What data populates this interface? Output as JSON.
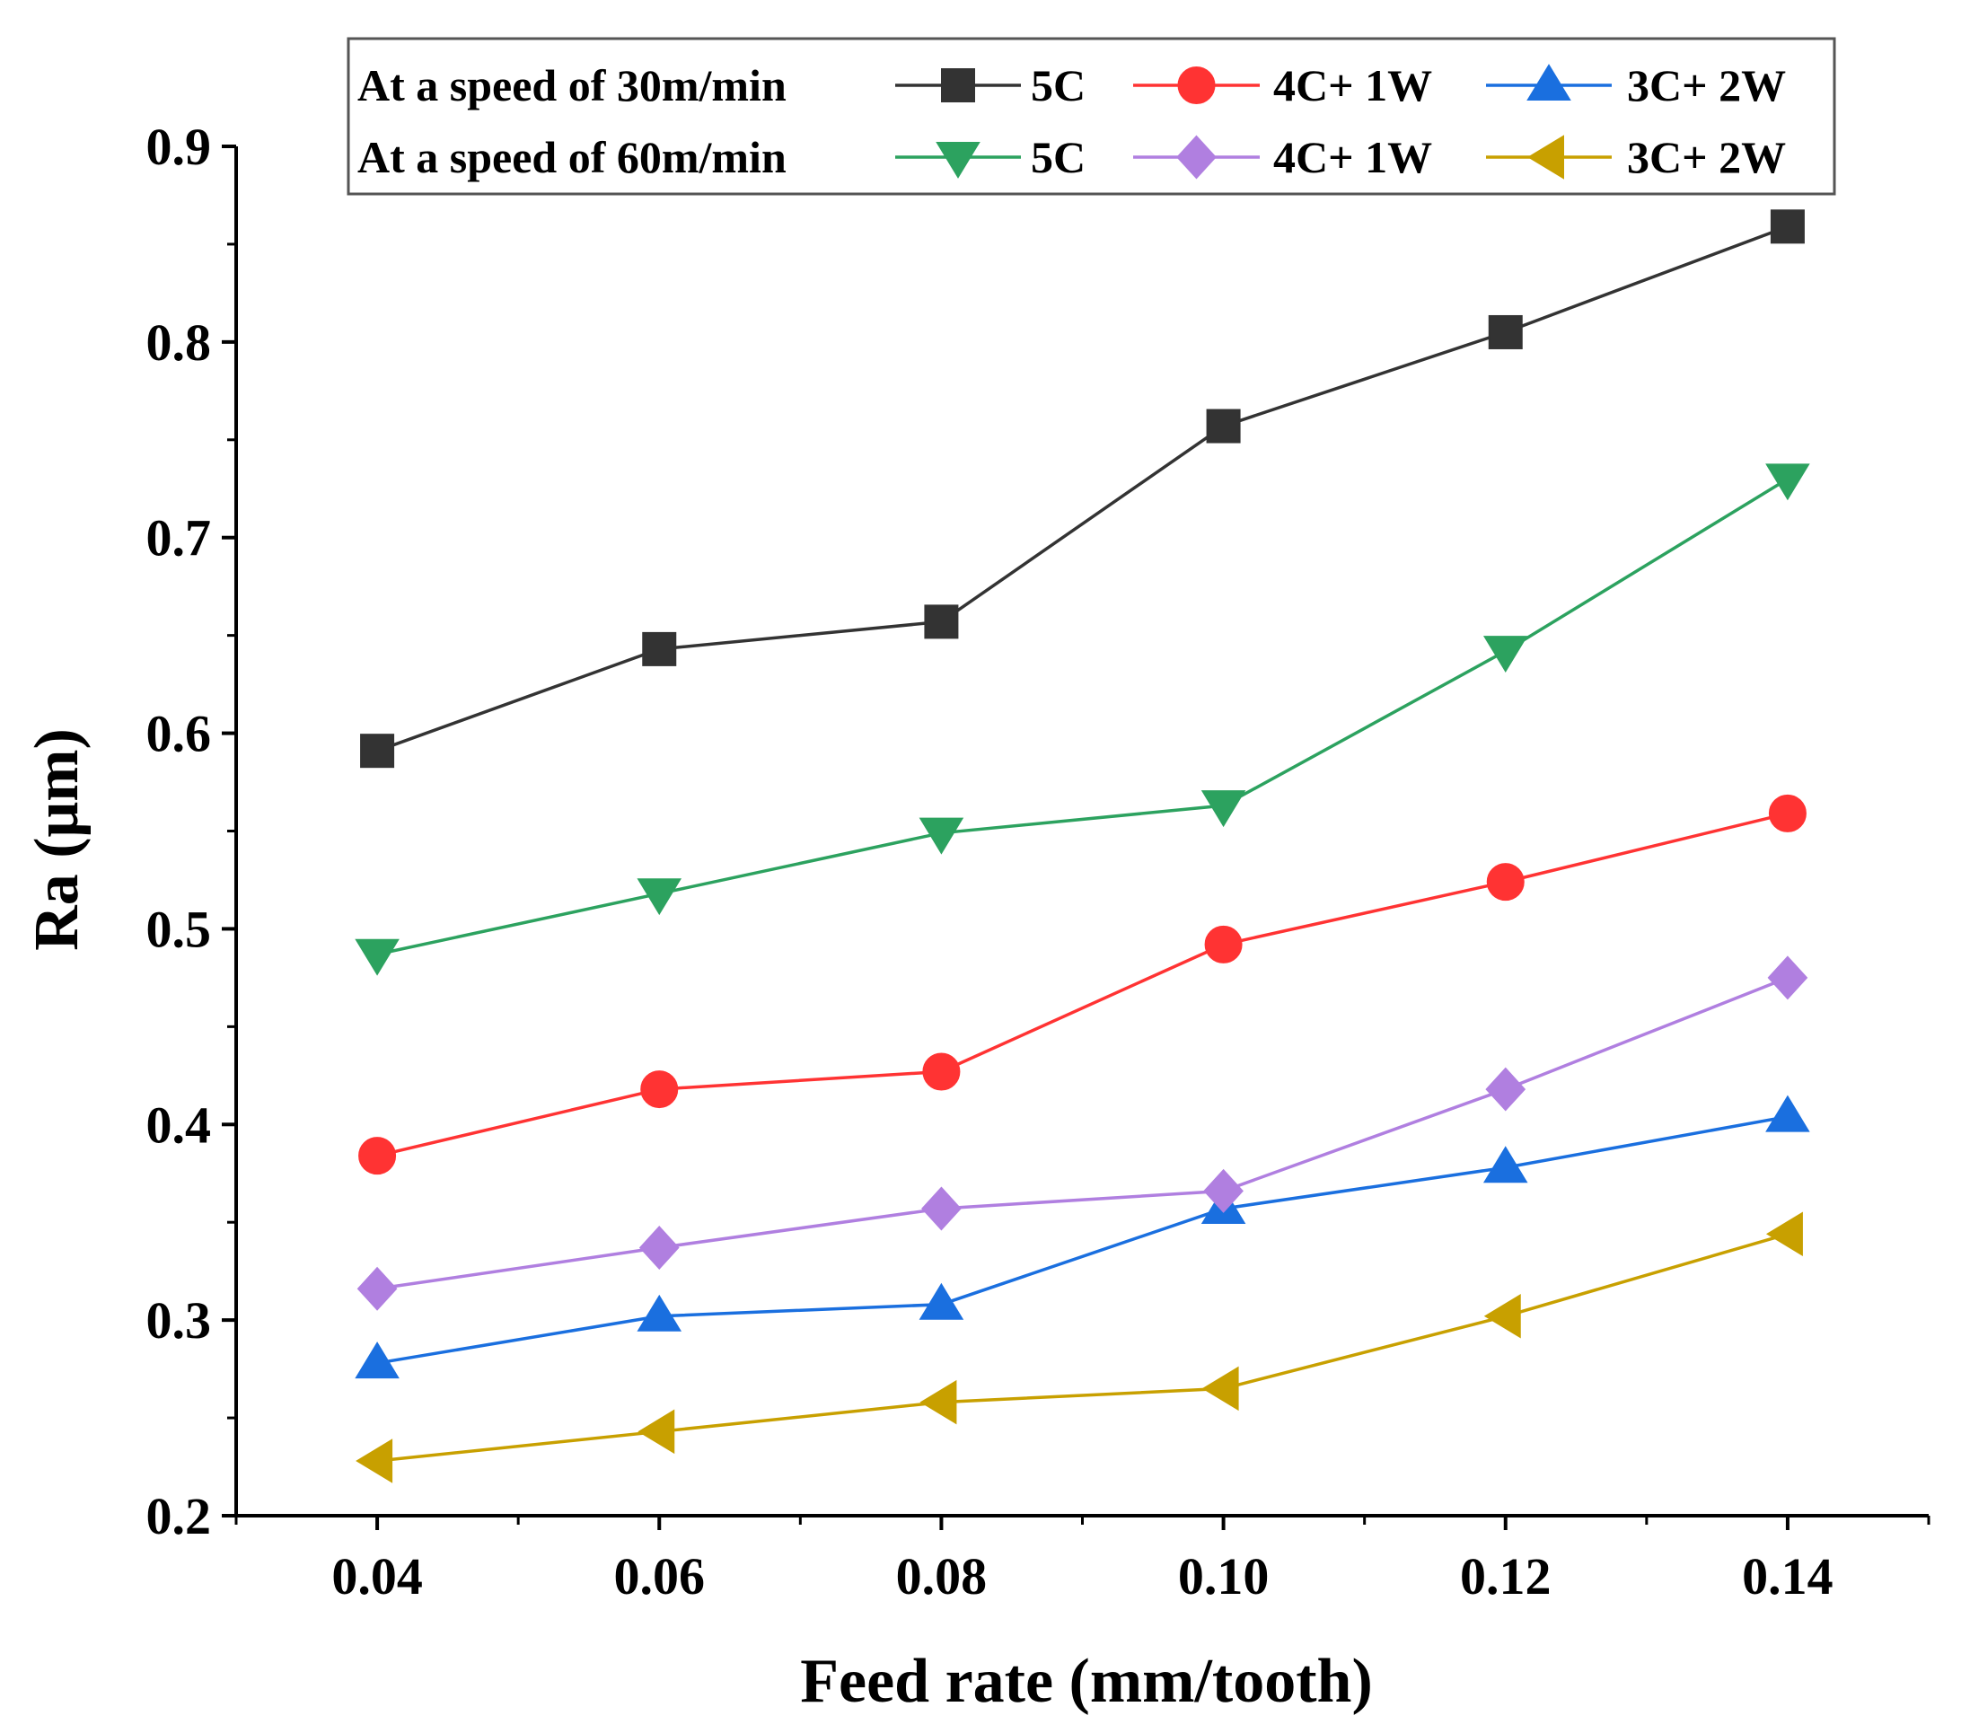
{
  "chart_data": {
    "type": "line",
    "title": "",
    "xlabel": "Feed rate (mm/tooth)",
    "ylabel": "Ra (μm)",
    "xlim": [
      0.03,
      0.15
    ],
    "ylim": [
      0.2,
      0.9
    ],
    "x_ticks": [
      "0.04",
      "0.06",
      "0.08",
      "0.10",
      "0.12",
      "0.14"
    ],
    "y_ticks": [
      "0.2",
      "0.3",
      "0.4",
      "0.5",
      "0.6",
      "0.7",
      "0.8",
      "0.9"
    ],
    "x": [
      0.04,
      0.06,
      0.08,
      0.1,
      0.12,
      0.14
    ],
    "legend_groups": [
      {
        "label": "At a speed of 30m/min"
      },
      {
        "label": "At a speed of 60m/min"
      }
    ],
    "series": [
      {
        "name": "5C",
        "group": 0,
        "color": "#333333",
        "marker": "square",
        "values": [
          0.591,
          0.643,
          0.657,
          0.757,
          0.805,
          0.859
        ]
      },
      {
        "name": "4C+ 1W",
        "group": 0,
        "color": "#ff3333",
        "marker": "circle",
        "values": [
          0.384,
          0.418,
          0.427,
          0.492,
          0.524,
          0.559
        ]
      },
      {
        "name": "3C+ 2W",
        "group": 0,
        "color": "#1a6fdf",
        "marker": "triangle-up",
        "values": [
          0.278,
          0.302,
          0.308,
          0.357,
          0.378,
          0.404
        ]
      },
      {
        "name": "5C",
        "group": 1,
        "color": "#2ca25f",
        "marker": "triangle-down",
        "values": [
          0.487,
          0.518,
          0.549,
          0.563,
          0.642,
          0.73
        ]
      },
      {
        "name": "4C+ 1W",
        "group": 1,
        "color": "#b07fe0",
        "marker": "diamond",
        "values": [
          0.316,
          0.337,
          0.357,
          0.366,
          0.418,
          0.475
        ]
      },
      {
        "name": "3C+ 2W",
        "group": 1,
        "color": "#c8a000",
        "marker": "triangle-left",
        "values": [
          0.228,
          0.243,
          0.258,
          0.265,
          0.302,
          0.344
        ]
      }
    ]
  }
}
